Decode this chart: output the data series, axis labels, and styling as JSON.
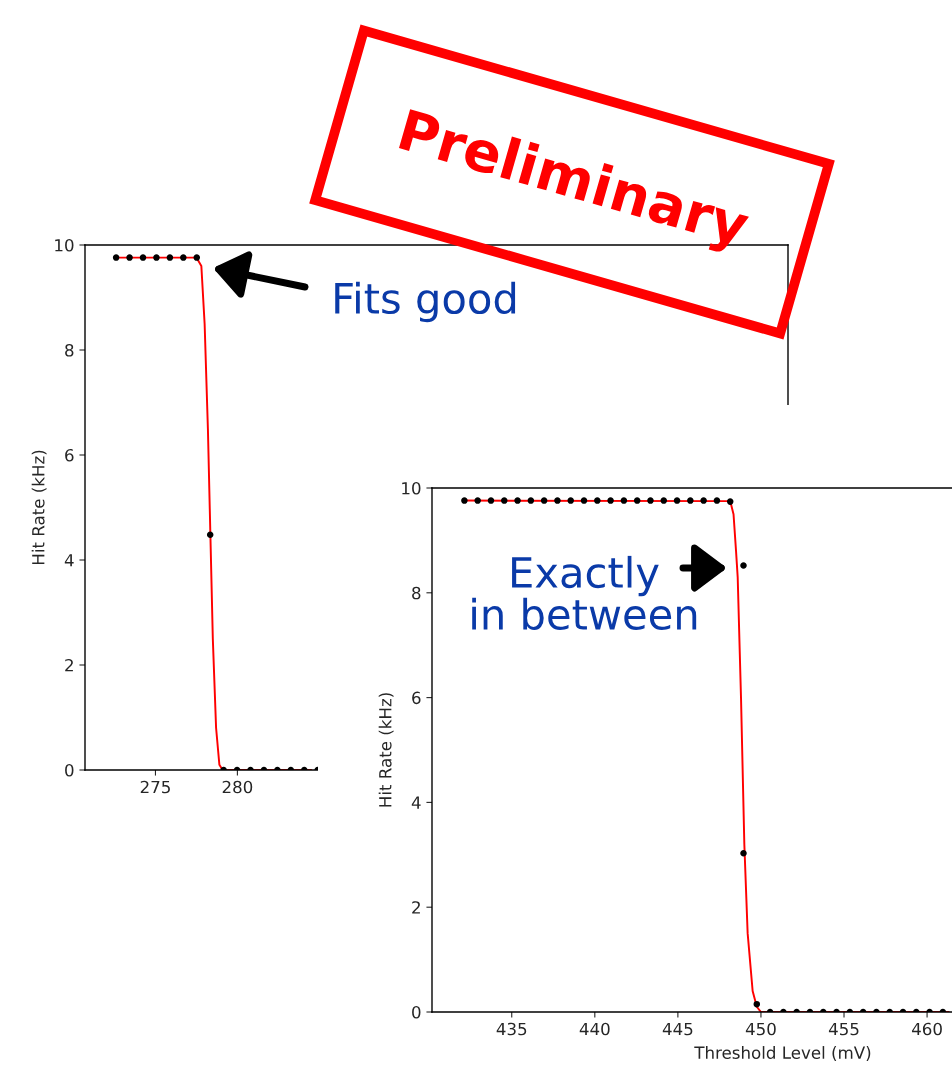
{
  "chart_data": [
    {
      "type": "scatter",
      "ylabel": "Hit Rate (kHz)",
      "xlim": [
        270.7,
        313.6
      ],
      "xticks": [
        275,
        280
      ],
      "ylim": [
        0,
        10
      ],
      "yticks": [
        0,
        2,
        4,
        6,
        8,
        10
      ],
      "grid": false,
      "legend": false,
      "annotations": [
        "Fits good",
        "Preliminary"
      ],
      "series": [
        {
          "type": "line",
          "color": "#ff0000",
          "marker": "none",
          "x": [
            272.6,
            277.5,
            277.8,
            278.0,
            278.2,
            278.35,
            278.5,
            278.7,
            278.9,
            279.1,
            284.5
          ],
          "values": [
            9.76,
            9.76,
            9.6,
            8.5,
            6.5,
            4.5,
            2.5,
            0.8,
            0.1,
            0,
            0
          ]
        },
        {
          "color": "#000000",
          "marker": "circle",
          "x": [
            272.6,
            273.42,
            274.24,
            275.06,
            275.88,
            276.7,
            277.52,
            278.34,
            279.16,
            279.98,
            280.8,
            281.62,
            282.44,
            283.26,
            284.08,
            284.9
          ],
          "values": [
            9.76,
            9.76,
            9.76,
            9.76,
            9.76,
            9.76,
            9.76,
            4.48,
            0,
            0,
            0,
            0,
            0,
            0,
            0,
            0
          ]
        }
      ]
    },
    {
      "type": "scatter",
      "xlabel": "Threshold Level (mV)",
      "ylabel": "Hit Rate (kHz)",
      "xlim": [
        430.2,
        461.5
      ],
      "xticks": [
        435,
        440,
        445,
        450,
        455,
        460
      ],
      "ylim": [
        0,
        10
      ],
      "yticks": [
        0,
        2,
        4,
        6,
        8,
        10
      ],
      "grid": false,
      "legend": false,
      "annotations": [
        "Exactly\nin between"
      ],
      "series": [
        {
          "type": "line",
          "color": "#ff0000",
          "marker": "none",
          "x": [
            432.15,
            448.15,
            448.35,
            448.5,
            448.6,
            448.8,
            449.0,
            449.2,
            449.5,
            449.75,
            450.0,
            461.3
          ],
          "values": [
            9.76,
            9.75,
            9.5,
            8.8,
            8.3,
            6.0,
            3.2,
            1.5,
            0.4,
            0.1,
            0,
            0
          ]
        },
        {
          "color": "#000000",
          "marker": "circle",
          "x": [
            432.15,
            432.95,
            433.75,
            434.55,
            435.35,
            436.15,
            436.95,
            437.75,
            438.55,
            439.35,
            440.15,
            440.95,
            441.75,
            442.55,
            443.35,
            444.15,
            444.95,
            445.75,
            446.55,
            447.35,
            448.15,
            448.95,
            448.95,
            449.75,
            450.55,
            451.35,
            452.15,
            452.95,
            453.75,
            454.55,
            455.35,
            456.15,
            456.95,
            457.75,
            458.55,
            459.35,
            460.15,
            460.95
          ],
          "values": [
            9.76,
            9.76,
            9.76,
            9.76,
            9.76,
            9.76,
            9.76,
            9.76,
            9.76,
            9.76,
            9.76,
            9.76,
            9.76,
            9.76,
            9.76,
            9.76,
            9.76,
            9.76,
            9.76,
            9.76,
            9.74,
            8.52,
            3.03,
            0.15,
            0,
            0,
            0,
            0,
            0,
            0,
            0,
            0,
            0,
            0,
            0,
            0,
            0,
            0
          ]
        }
      ]
    }
  ]
}
